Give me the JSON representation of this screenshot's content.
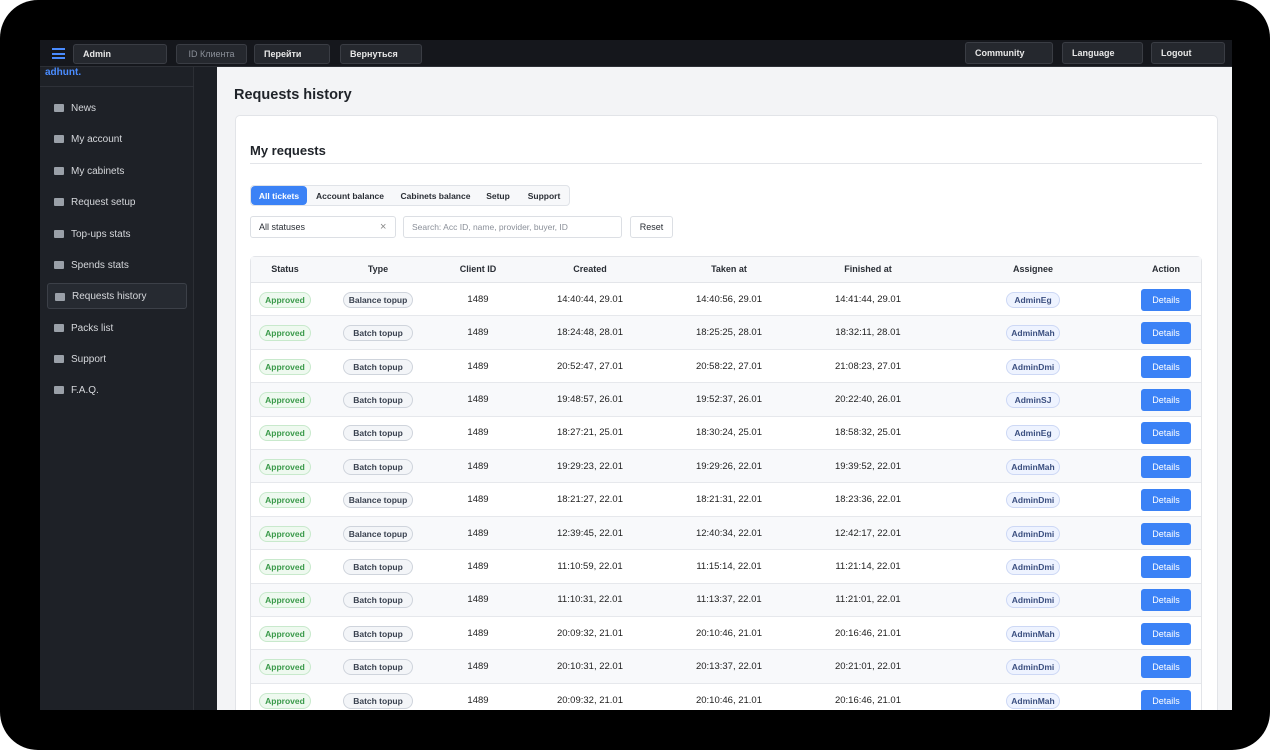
{
  "topbar": {
    "user": "Admin",
    "client_id_placeholder": "ID Клиента",
    "go_button": "Перейти",
    "back_button": "Вернуться",
    "community": "Community",
    "language": "Language",
    "logout": "Logout"
  },
  "sidebar": {
    "logo": "adhunt.",
    "items": [
      "News",
      "My account",
      "My cabinets",
      "Request setup",
      "Top-ups stats",
      "Spends stats",
      "Requests history",
      "Packs list",
      "Support",
      "F.A.Q."
    ]
  },
  "page": {
    "title": "Requests history"
  },
  "card": {
    "title": "My requests",
    "tabs": [
      "All tickets",
      "Account balance",
      "Cabinets balance",
      "Setup",
      "Support"
    ],
    "status_filter": "All statuses",
    "search_placeholder": "Search: Acc ID, name, provider, buyer, ID",
    "reset": "Reset"
  },
  "table": {
    "columns": [
      "Status",
      "Type",
      "Client ID",
      "Created",
      "Taken at",
      "Finished at",
      "Assignee",
      "Action"
    ],
    "rows": [
      [
        "Approved",
        "Balance topup",
        1489,
        "14:40:44, 29.01",
        "14:40:56, 29.01",
        "14:41:44, 29.01",
        "AdminEg",
        "Details"
      ],
      [
        "Approved",
        "Batch topup",
        1489,
        "18:24:48, 28.01",
        "18:25:25, 28.01",
        "18:32:11, 28.01",
        "AdminMah",
        "Details"
      ],
      [
        "Approved",
        "Batch topup",
        1489,
        "20:52:47, 27.01",
        "20:58:22, 27.01",
        "21:08:23, 27.01",
        "AdminDmi",
        "Details"
      ],
      [
        "Approved",
        "Batch topup",
        1489,
        "19:48:57, 26.01",
        "19:52:37, 26.01",
        "20:22:40, 26.01",
        "AdminSJ",
        "Details"
      ],
      [
        "Approved",
        "Batch topup",
        1489,
        "18:27:21, 25.01",
        "18:30:24, 25.01",
        "18:58:32, 25.01",
        "AdminEg",
        "Details"
      ],
      [
        "Approved",
        "Batch topup",
        1489,
        "19:29:23, 22.01",
        "19:29:26, 22.01",
        "19:39:52, 22.01",
        "AdminMah",
        "Details"
      ],
      [
        "Approved",
        "Balance topup",
        1489,
        "18:21:27, 22.01",
        "18:21:31, 22.01",
        "18:23:36, 22.01",
        "AdminDmi",
        "Details"
      ],
      [
        "Approved",
        "Balance topup",
        1489,
        "12:39:45, 22.01",
        "12:40:34, 22.01",
        "12:42:17, 22.01",
        "AdminDmi",
        "Details"
      ],
      [
        "Approved",
        "Batch topup",
        1489,
        "11:10:59, 22.01",
        "11:15:14, 22.01",
        "11:21:14, 22.01",
        "AdminDmi",
        "Details"
      ],
      [
        "Approved",
        "Batch topup",
        1489,
        "11:10:31, 22.01",
        "11:13:37, 22.01",
        "11:21:01, 22.01",
        "AdminDmi",
        "Details"
      ],
      [
        "Approved",
        "Batch topup",
        1489,
        "20:09:32, 21.01",
        "20:10:46, 21.01",
        "20:16:46, 21.01",
        "AdminMah",
        "Details"
      ],
      [
        "Approved",
        "Batch topup",
        1489,
        "20:10:31, 22.01",
        "20:13:37, 22.01",
        "20:21:01, 22.01",
        "AdminDmi",
        "Details"
      ],
      [
        "Approved",
        "Batch topup",
        1489,
        "20:09:32, 21.01",
        "20:10:46, 21.01",
        "20:16:46, 21.01",
        "AdminMah",
        "Details"
      ]
    ]
  }
}
